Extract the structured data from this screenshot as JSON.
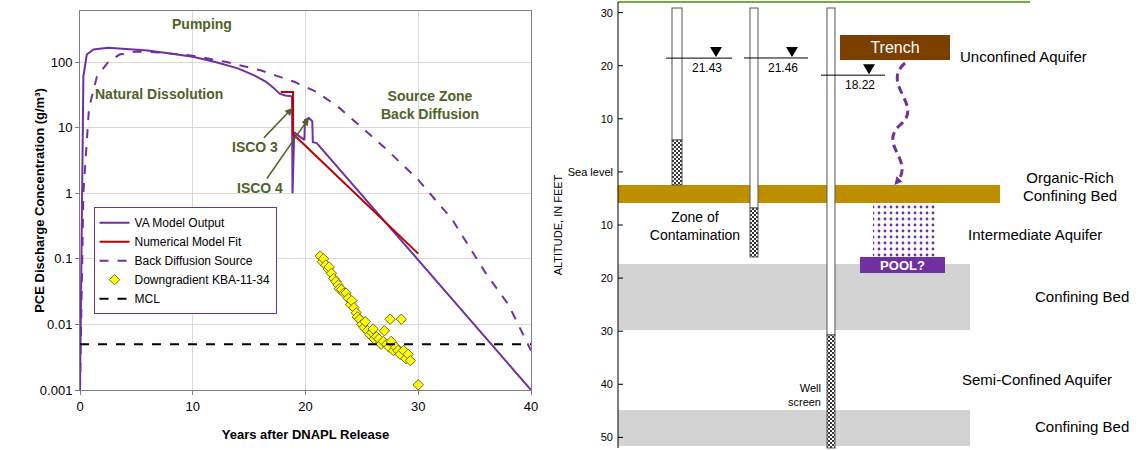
{
  "chart_data": {
    "type": "line",
    "xlabel": "Years after DNAPL Release",
    "ylabel": "PCE Discharge Concentration (g/m³)",
    "xlim": [
      0,
      40
    ],
    "xticks": [
      0,
      10,
      20,
      30,
      40
    ],
    "ylim": [
      0.001,
      600
    ],
    "yticks": [
      0.001,
      0.01,
      0.1,
      1,
      10,
      100
    ],
    "log": "y",
    "grid": true,
    "legend": "lower left",
    "series": [
      {
        "name": "VA Model Output",
        "type": "line",
        "color": "#7030a0",
        "line_style": "solid",
        "x": [
          0,
          0.15,
          0.3,
          0.6,
          1.2,
          2.5,
          4,
          6,
          8,
          10,
          12,
          14,
          15.5,
          16.5,
          17.2,
          17.7,
          18.2,
          18.8,
          18.85,
          19.0,
          19.4,
          19.9,
          19.95,
          20.3,
          20.6,
          20.65,
          21,
          40
        ],
        "values": [
          0.001,
          1,
          60,
          130,
          155,
          165,
          160,
          150,
          135,
          120,
          100,
          80,
          62,
          50,
          40,
          33,
          31,
          30,
          1,
          8.5,
          7.5,
          6.5,
          13,
          14,
          12.5,
          6,
          5.8,
          0.001
        ]
      },
      {
        "name": "Numerical Model Fit",
        "type": "line",
        "color": "#c00000",
        "line_style": "solid",
        "x": [
          17.8,
          18.9,
          18.9,
          30
        ],
        "values": [
          35,
          35,
          8,
          0.12
        ]
      },
      {
        "name": "Back Diffusion Source",
        "type": "line",
        "color": "#7030a0",
        "line_style": "dashed",
        "x": [
          0,
          0.3,
          0.8,
          1.5,
          2.5,
          3.5,
          5,
          7,
          10,
          13,
          16,
          19,
          21,
          23,
          25,
          27,
          30,
          33,
          36,
          38,
          40
        ],
        "values": [
          0.001,
          1,
          20,
          60,
          100,
          130,
          145,
          140,
          125,
          100,
          75,
          50,
          35,
          20,
          10,
          5,
          1.6,
          0.4,
          0.06,
          0.02,
          0.004
        ]
      },
      {
        "name": "Downgradient KBA-11-34",
        "type": "scatter",
        "color": "#ffff00",
        "marker": "diamond",
        "x": [
          21.3,
          21.5,
          21.6,
          21.8,
          22.0,
          22.1,
          22.3,
          22.5,
          22.7,
          22.9,
          23.0,
          23.2,
          23.4,
          23.6,
          23.8,
          24.0,
          24.1,
          24.3,
          24.5,
          24.6,
          24.8,
          25.0,
          25.2,
          25.3,
          25.5,
          25.7,
          25.9,
          26.0,
          26.1,
          26.3,
          26.5,
          26.7,
          26.9,
          27.0,
          27.2,
          27.4,
          27.5,
          27.6,
          27.8,
          28.0,
          28.2,
          28.4,
          28.5,
          28.7,
          28.9,
          29.1,
          29.3,
          30.0
        ],
        "values": [
          0.11,
          0.09,
          0.1,
          0.08,
          0.07,
          0.075,
          0.06,
          0.05,
          0.045,
          0.04,
          0.035,
          0.034,
          0.03,
          0.03,
          0.025,
          0.02,
          0.023,
          0.018,
          0.015,
          0.013,
          0.012,
          0.01,
          0.009,
          0.011,
          0.008,
          0.007,
          0.0075,
          0.0085,
          0.006,
          0.0065,
          0.006,
          0.005,
          0.0055,
          0.008,
          0.005,
          0.0045,
          0.012,
          0.0055,
          0.004,
          0.0045,
          0.004,
          0.0035,
          0.012,
          0.004,
          0.003,
          0.0035,
          0.0028,
          0.0012
        ]
      },
      {
        "name": "MCL",
        "type": "line",
        "color": "#000000",
        "line_style": "dashed",
        "x": [
          0,
          40
        ],
        "values": [
          0.005,
          0.005
        ]
      }
    ],
    "annotations": [
      {
        "text": [
          "Pumping"
        ],
        "x": 10.8,
        "y": 380,
        "color": "#4f6228"
      },
      {
        "text": [
          "Natural Dissolution"
        ],
        "x": 7,
        "y": 33,
        "color": "#4f6228"
      },
      {
        "text": [
          "ISCO 3"
        ],
        "x": 15.5,
        "y": 5,
        "points_to": [
          18.85,
          20
        ],
        "color": "#4f6228"
      },
      {
        "text": [
          "ISCO 4"
        ],
        "x": 16,
        "y": 1.2,
        "points_to": [
          20.3,
          14
        ],
        "color": "#4f6228"
      },
      {
        "text": [
          "Source Zone",
          "Back Diffusion"
        ],
        "x": 31,
        "y": 22,
        "color": "#4f6228"
      }
    ]
  },
  "diagram": {
    "altitude_axis": {
      "title": "ALTITUDE, IN FEET",
      "range": [
        -52,
        32
      ],
      "ticks": [
        {
          "value": 30,
          "label": "30"
        },
        {
          "value": 20,
          "label": "20"
        },
        {
          "value": 10,
          "label": "10"
        },
        {
          "value": 0,
          "label": "Sea level"
        },
        {
          "value": -10,
          "label": "10"
        },
        {
          "value": -20,
          "label": "20"
        },
        {
          "value": -30,
          "label": "30"
        },
        {
          "value": -40,
          "label": "40"
        },
        {
          "value": -50,
          "label": "50"
        }
      ]
    },
    "wells": [
      {
        "water_level": 21.43
      },
      {
        "water_level": 21.46
      },
      {
        "water_level": 18.22,
        "screen_label": [
          "Well",
          "screen"
        ]
      }
    ],
    "layers": [
      {
        "label": [
          "Unconfined Aquifer"
        ]
      },
      {
        "label": [
          "Organic-Rich",
          "Confining Bed"
        ]
      },
      {
        "label": [
          "Intermediate Aquifer"
        ]
      },
      {
        "label": [
          "Confining Bed"
        ]
      },
      {
        "label": [
          "Semi-Confined Aquifer"
        ]
      },
      {
        "label": [
          "Confining Bed"
        ]
      }
    ],
    "trench": "Trench",
    "zone": [
      "Zone of",
      "Contamination"
    ],
    "pool": "POOL?"
  }
}
